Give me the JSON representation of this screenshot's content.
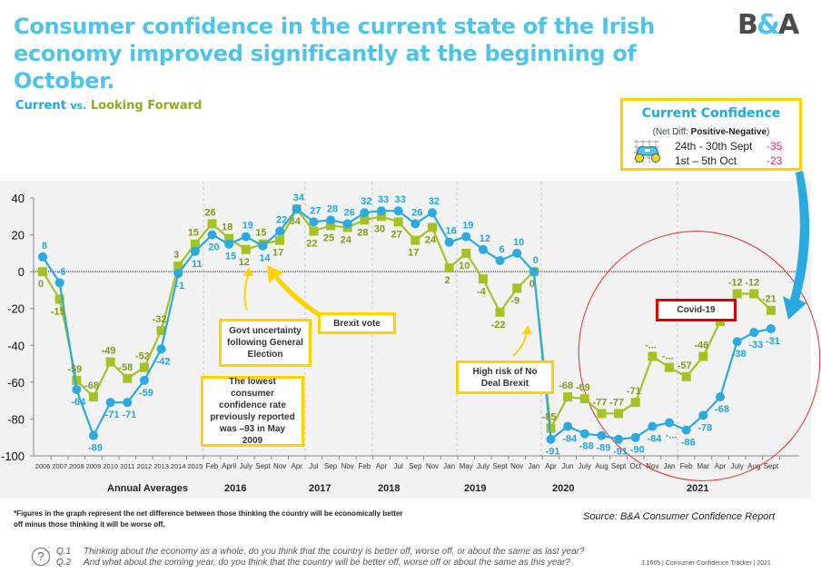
{
  "header": {
    "title": "Consumer confidence in the current state of the Irish economy improved significantly at the beginning of October.",
    "subtitle_current": "Current",
    "subtitle_vs": "vs.",
    "subtitle_forward": "Looking Forward",
    "logo_left": "B",
    "logo_amp": "&",
    "logo_right": "A"
  },
  "legend_box": {
    "title": "Current Confidence",
    "sub_prefix": "(Net Diff: ",
    "sub_bold": "Positive-Negative",
    "sub_suffix": ")",
    "rows": [
      {
        "period": "24th - 30th Sept",
        "value": "-35"
      },
      {
        "period": "1st – 5th Oct",
        "value": "-23"
      }
    ],
    "icon": "binoculars-icon"
  },
  "annotations": {
    "govt": "Govt uncertainty following General Election",
    "brexit_vote": "Brexit vote",
    "lowest": "The  lowest consumer confidence rate previously reported was –93 in May 2009",
    "no_deal": "High risk of No Deal Brexit",
    "covid": "Covid-19"
  },
  "groups": {
    "annual": "Annual Averages",
    "y2016": "2016",
    "y2017": "2017",
    "y2018": "2018",
    "y2019": "2019",
    "y2020": "2020",
    "y2021": "2021"
  },
  "footer": {
    "footnote": "*Figures in the graph represent the net difference between those thinking the country will be economically better off minus those thinking it will be worse off.",
    "source": "Source: B&A Consumer Confidence Report",
    "q1_num": "Q.1",
    "q1": "Thinking about the economy as a whole, do you think that the country is better off, worse off, or about the same as last year?",
    "q2_num": "Q.2",
    "q2": "And what about the coming year, do you think that the country will be better off, worse off or about the same as this year?",
    "tracker": "J.1665  |  Consumer Confidence Tracker  |  2021",
    "question_icon": "question-mark-icon"
  },
  "colors": {
    "current": "#29abe2",
    "forward": "#a5c223",
    "forward_label": "#7f9b1a",
    "title": "#4fc3e8",
    "highlight_box": "#ffd200",
    "covid_box": "#e00000",
    "legend_value": "#e0287a"
  },
  "chart_data": {
    "type": "line",
    "title": "Current vs. Looking Forward",
    "xlabel": "",
    "ylabel": "",
    "ylim": [
      -100,
      40
    ],
    "yticks": [
      40,
      20,
      0,
      -20,
      -40,
      -60,
      -80,
      -100
    ],
    "grid": false,
    "legend": "top-right",
    "categories": [
      "2006",
      "2007",
      "2008",
      "2009",
      "2010",
      "2011",
      "2012",
      "2013",
      "2014",
      "2015",
      "Feb",
      "April",
      "July",
      "Sept",
      "Nov",
      "Apr",
      "Jul",
      "Sep",
      "Nov",
      "Feb",
      "Apr",
      "Jul",
      "Sep",
      "Nov",
      "Jan",
      "May",
      "July",
      "Sept",
      "Nov",
      "Jan",
      "Apr",
      "Jun",
      "July",
      "Aug",
      "Sept",
      "Oct",
      "Nov",
      "Jan",
      "Feb",
      "Mar",
      "Apr",
      "July",
      "Aug",
      "Sept"
    ],
    "series": [
      {
        "name": "Current",
        "values": [
          8,
          -6,
          -64,
          -89,
          -71,
          -71,
          -59,
          -42,
          -1,
          11,
          20,
          15,
          19,
          14,
          22,
          34,
          27,
          28,
          26,
          32,
          33,
          33,
          26,
          32,
          16,
          19,
          12,
          6,
          10,
          0,
          -91,
          -84,
          -88,
          -89,
          -91,
          -90,
          -84,
          -82,
          -86,
          -78,
          -68,
          -38,
          -33,
          -31
        ],
        "labels": [
          "8",
          "-6",
          "-64",
          "-89",
          "-71",
          "-71",
          "-59",
          "-42",
          "-1",
          "11",
          "20",
          "15",
          "19",
          "14",
          "22",
          "34",
          "27",
          "28",
          "26",
          "32",
          "33",
          "33",
          "26",
          "32",
          "16",
          "19",
          "12",
          "6",
          "10",
          "0",
          "-91",
          "-84",
          "-88",
          "-89",
          "-91",
          "-90",
          "-84",
          "-...",
          "-86",
          "-78",
          "-68",
          "-38",
          "-33",
          "-31"
        ]
      },
      {
        "name": "Looking Forward",
        "values": [
          0,
          -15,
          -59,
          -68,
          -49,
          -58,
          -52,
          -32,
          3,
          15,
          26,
          18,
          12,
          15,
          17,
          34,
          22,
          25,
          24,
          28,
          30,
          27,
          17,
          24,
          2,
          10,
          -4,
          -22,
          -9,
          0,
          -85,
          -68,
          -69,
          -77,
          -77,
          -71,
          -46,
          -52,
          -57,
          -46,
          -27,
          -12,
          -12,
          -21
        ],
        "labels": [
          "0",
          "-15",
          "-59",
          "-68",
          "-49",
          "-58",
          "-52",
          "-32",
          "3",
          "15",
          "26",
          "18",
          "12",
          "15",
          "17",
          "34",
          "22",
          "25",
          "24",
          "28",
          "30",
          "27",
          "17",
          "24",
          "2",
          "10",
          "-4",
          "-22",
          "-9",
          "0",
          "-85",
          "-68",
          "-69",
          "-77",
          "-77",
          "-71",
          "-...",
          "-...",
          "-57",
          "-46",
          "-27",
          "-12",
          "-12",
          "-21"
        ]
      }
    ],
    "annotations": [
      "Govt uncertainty following General Election",
      "Brexit vote",
      "The lowest consumer confidence rate previously reported was –93 in May 2009",
      "High risk of No Deal Brexit",
      "Covid-19"
    ]
  }
}
